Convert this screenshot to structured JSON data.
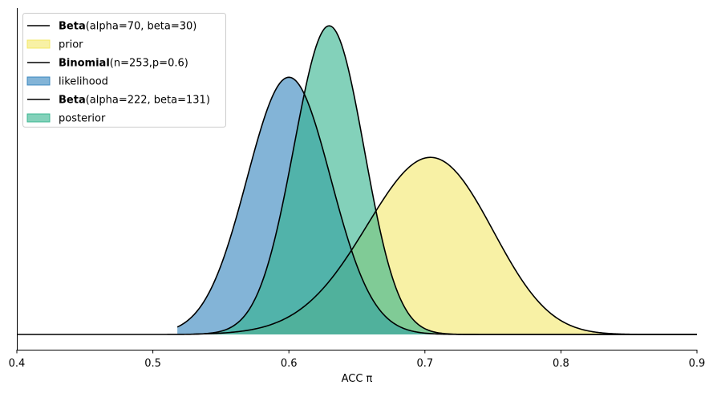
{
  "chart_data": {
    "type": "area",
    "title": "",
    "xlabel": "ACC π",
    "ylabel": "",
    "xlim": [
      0.4,
      0.9
    ],
    "xticks": [
      "0.4",
      "0.5",
      "0.6",
      "0.7",
      "0.8",
      "0.9"
    ],
    "yticks_visible": false,
    "grid": false,
    "legend_position": "top-left",
    "series": [
      {
        "id": "prior",
        "distribution": "Beta",
        "line_label_bold": "Beta",
        "line_label_rest": "(alpha=70, beta=30)",
        "fill_label": "prior",
        "alpha": 70,
        "beta": 30,
        "x_start": 0.53,
        "x_end": 0.9,
        "peak_density": 8.95,
        "fill_color": "#f2e55b",
        "fill_opacity": 0.55
      },
      {
        "id": "likelihood",
        "distribution": "Binomial",
        "line_label_bold": "Binomial",
        "line_label_rest": "(n=253,p=0.6)",
        "fill_label": "likelihood",
        "n": 253,
        "p": 0.6,
        "x_start": 0.518,
        "x_end": 0.9,
        "peak_density": 13.0,
        "fill_color": "#3182bd",
        "fill_opacity": 0.6
      },
      {
        "id": "posterior",
        "distribution": "Beta",
        "line_label_bold": "Beta",
        "line_label_rest": "(alpha=222, beta=131)",
        "fill_label": "posterior",
        "alpha": 222,
        "beta": 131,
        "x_start": 0.4,
        "x_end": 0.9,
        "peak_density": 15.6,
        "fill_color": "#31b38c",
        "fill_opacity": 0.6
      }
    ],
    "y_max": 16.5
  }
}
